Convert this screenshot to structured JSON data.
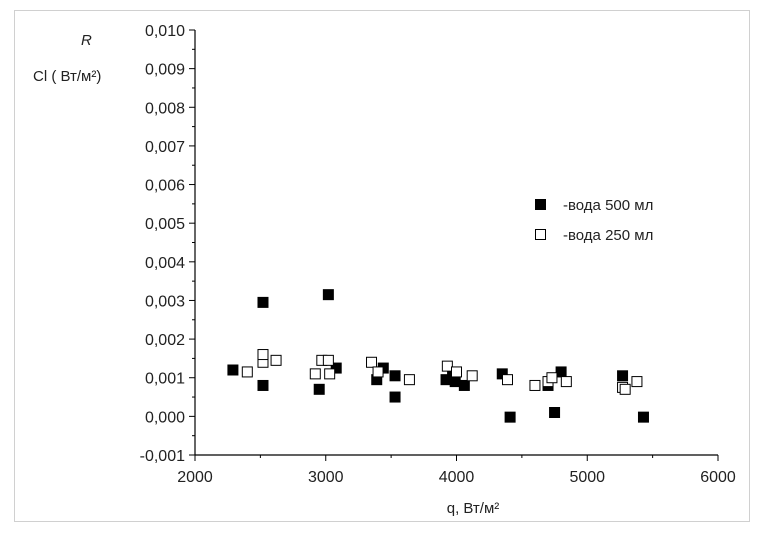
{
  "chart_data": {
    "type": "scatter",
    "xlabel": "q, Вт/м²",
    "ylabel": {
      "line1": "R",
      "line2": "Cl ( Вт/м²)"
    },
    "xlim": [
      2000,
      6000
    ],
    "ylim": [
      -0.001,
      0.01
    ],
    "x_ticks": [
      2000,
      3000,
      4000,
      5000,
      6000
    ],
    "x_tick_labels": [
      "2000",
      "3000",
      "4000",
      "5000",
      "6000"
    ],
    "y_ticks": [
      -0.001,
      0,
      0.001,
      0.002,
      0.003,
      0.004,
      0.005,
      0.006,
      0.007,
      0.008,
      0.009,
      0.01
    ],
    "y_tick_labels": [
      "-0,001",
      "0,000",
      "0,001",
      "0,002",
      "0,003",
      "0,004",
      "0,005",
      "0,006",
      "0,007",
      "0,008",
      "0,009",
      "0,010"
    ],
    "legend_position": "top-right",
    "grid": false,
    "series": [
      {
        "name": "-вода 500 мл",
        "marker": "filled-square",
        "color": "#000000",
        "points": [
          [
            2290,
            0.0012
          ],
          [
            2520,
            0.00295
          ],
          [
            2520,
            0.0008
          ],
          [
            2950,
            0.0007
          ],
          [
            3020,
            0.00315
          ],
          [
            3080,
            0.00125
          ],
          [
            3390,
            0.00095
          ],
          [
            3440,
            0.00125
          ],
          [
            3530,
            0.00105
          ],
          [
            3530,
            0.0005
          ],
          [
            3920,
            0.00095
          ],
          [
            3970,
            0.0011
          ],
          [
            3990,
            0.0009
          ],
          [
            4060,
            0.0008
          ],
          [
            4350,
            0.0011
          ],
          [
            4410,
            -2e-05
          ],
          [
            4700,
            0.0008
          ],
          [
            4750,
            0.0001
          ],
          [
            4800,
            0.00115
          ],
          [
            5270,
            0.00105
          ],
          [
            5430,
            -2e-05
          ]
        ]
      },
      {
        "name": "-вода 250 мл",
        "marker": "open-square",
        "color": "#000000",
        "points": [
          [
            2400,
            0.00115
          ],
          [
            2520,
            0.0014
          ],
          [
            2520,
            0.0016
          ],
          [
            2620,
            0.00145
          ],
          [
            2920,
            0.0011
          ],
          [
            2970,
            0.00145
          ],
          [
            3020,
            0.00145
          ],
          [
            3030,
            0.0011
          ],
          [
            3350,
            0.0014
          ],
          [
            3400,
            0.00115
          ],
          [
            3640,
            0.00095
          ],
          [
            3930,
            0.0013
          ],
          [
            4000,
            0.00115
          ],
          [
            4120,
            0.00105
          ],
          [
            4390,
            0.00095
          ],
          [
            4600,
            0.0008
          ],
          [
            4700,
            0.0009
          ],
          [
            4730,
            0.001
          ],
          [
            4840,
            0.0009
          ],
          [
            5270,
            0.00075
          ],
          [
            5290,
            0.0007
          ],
          [
            5380,
            0.0009
          ]
        ]
      }
    ]
  }
}
